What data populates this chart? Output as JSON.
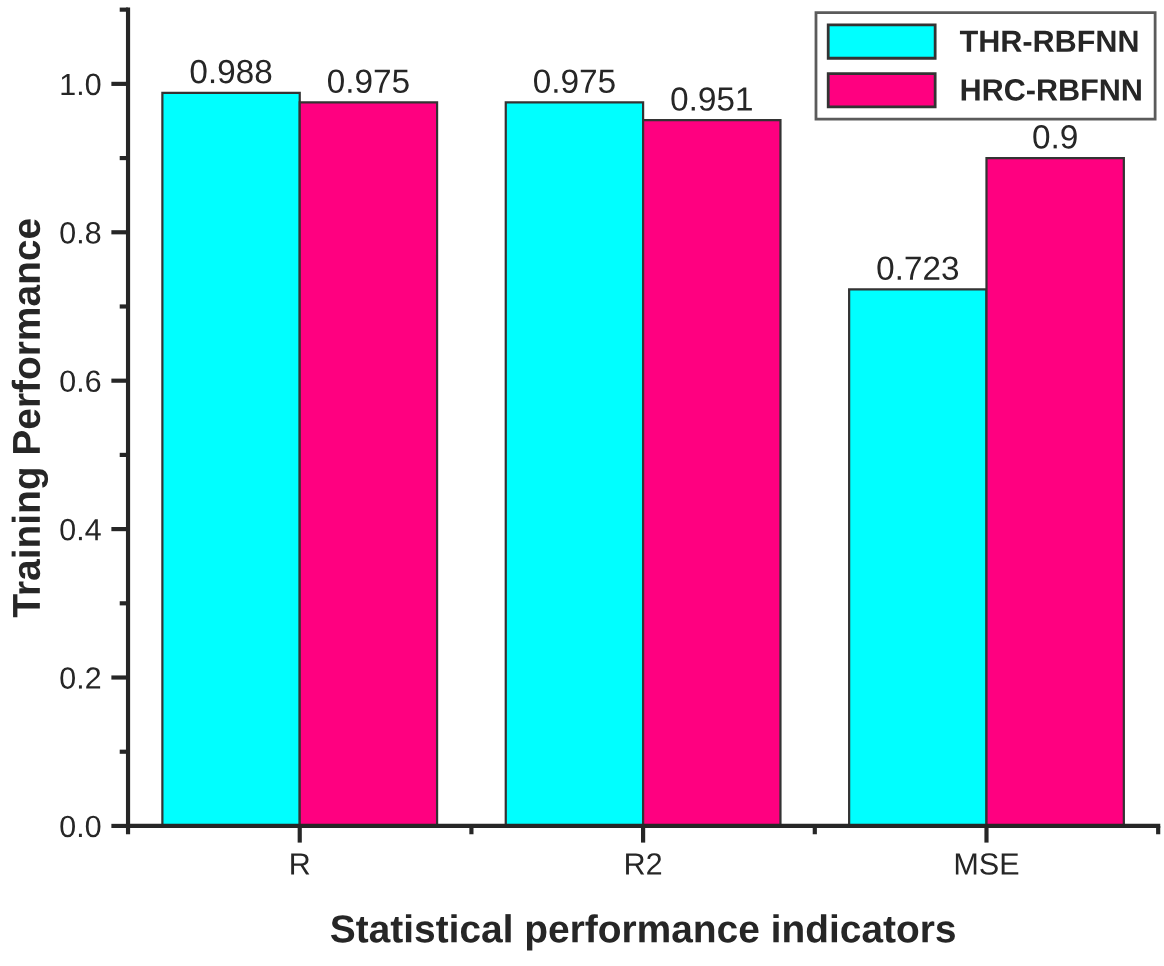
{
  "chart_data": {
    "type": "bar",
    "xlabel": "Statistical performance indicators",
    "ylabel": "Training Performance",
    "categories": [
      "R",
      "R2",
      "MSE"
    ],
    "series": [
      {
        "name": "THR-RBFNN",
        "color": "#00ffff",
        "values": [
          0.988,
          0.975,
          0.723
        ]
      },
      {
        "name": "HRC-RBFNN",
        "color": "#ff0080",
        "values": [
          0.975,
          0.951,
          0.9
        ]
      }
    ],
    "ylim": [
      0,
      1.1
    ],
    "yticks": [
      {
        "value": 0,
        "label": "0.0"
      },
      0.2,
      0.4,
      0.6,
      0.8,
      {
        "value": 1,
        "label": "1.0"
      }
    ],
    "data_labels": true,
    "legend": "top right",
    "grid": false
  }
}
